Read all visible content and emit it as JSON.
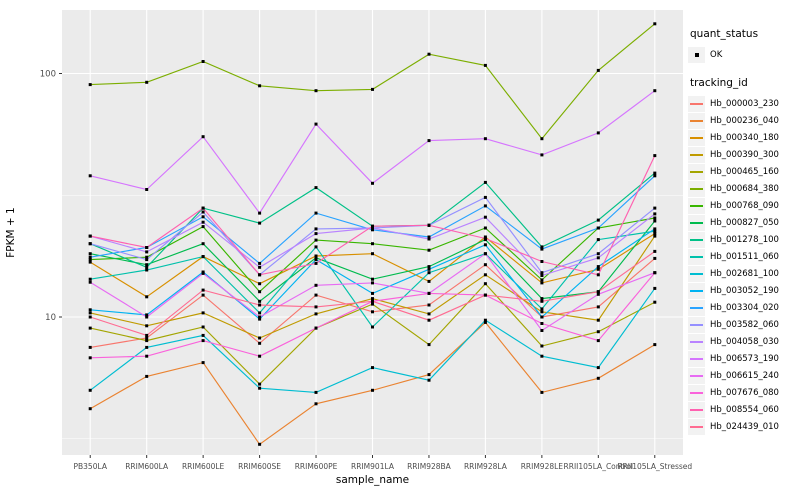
{
  "figure": {
    "background": "#FFFFFF",
    "panel_background": "#EBEBEB",
    "grid_color": "#FFFFFF",
    "axis_text_color": "#4D4D4D",
    "axis_title_color": "#000000",
    "point_color": "#000000"
  },
  "legend": {
    "quant_status_title": "quant_status",
    "quant_status_items": [
      {
        "label": "OK"
      }
    ],
    "tracking_id_title": "tracking_id"
  },
  "chart_data": {
    "type": "line",
    "title": "",
    "xlabel": "sample_name",
    "ylabel": "FPKM + 1",
    "y_scale": "log10",
    "y_major_ticks": [
      100,
      10
    ],
    "y_minor_ticks": [
      31.62,
      3.162
    ],
    "grid": true,
    "legend_position": "right",
    "point_shape": "filled-black-square",
    "quant_status": "OK",
    "x_categories": [
      "PB350LA",
      "RRIM600LA",
      "RRIM600LE",
      "RRIM600SE",
      "RRIM600PE",
      "RRIM901LA",
      "RRIM928BA",
      "RRIM928LA",
      "RRIM928LE",
      "RRII105LA_Control",
      "RRII105LA_Stressed"
    ],
    "series": [
      {
        "name": "Hb_000003_230",
        "color": "#F8766D",
        "values": [
          7.5,
          8.2,
          12.3,
          7.8,
          12.3,
          10.5,
          11.2,
          16.4,
          10.0,
          11.0,
          17.4
        ]
      },
      {
        "name": "Hb_000236_040",
        "color": "#EA8331",
        "values": [
          4.2,
          5.7,
          6.5,
          3.0,
          4.4,
          5.0,
          5.8,
          9.5,
          4.9,
          5.6,
          7.7
        ]
      },
      {
        "name": "Hb_000340_180",
        "color": "#D89000",
        "values": [
          16.8,
          12.1,
          17.7,
          13.7,
          17.8,
          18.2,
          14.0,
          21.3,
          13.8,
          15.7,
          22.0
        ]
      },
      {
        "name": "Hb_000390_300",
        "color": "#C09B00",
        "values": [
          10.4,
          9.2,
          10.4,
          8.2,
          10.3,
          11.9,
          10.3,
          14.9,
          10.5,
          9.7,
          21.5
        ]
      },
      {
        "name": "Hb_000465_160",
        "color": "#A3A500",
        "values": [
          9.0,
          8.0,
          9.1,
          5.3,
          9.0,
          11.3,
          7.7,
          13.7,
          7.6,
          8.7,
          11.5
        ]
      },
      {
        "name": "Hb_000684_380",
        "color": "#7CAE00",
        "values": [
          90,
          92,
          112,
          89,
          85,
          86,
          120,
          108,
          54,
          103,
          160
        ]
      },
      {
        "name": "Hb_000768_090",
        "color": "#39B600",
        "values": [
          17.2,
          17.6,
          23.5,
          12.7,
          20.7,
          20.0,
          18.8,
          23.2,
          14.2,
          23.2,
          25.5
        ]
      },
      {
        "name": "Hb_000827_050",
        "color": "#00BB4E",
        "values": [
          18.2,
          16.4,
          20.0,
          11.6,
          17.5,
          14.3,
          16.1,
          20.8,
          11.9,
          12.7,
          24.8
        ]
      },
      {
        "name": "Hb_001278_100",
        "color": "#00C087",
        "values": [
          20.0,
          16.0,
          28.0,
          24.3,
          34.0,
          23.6,
          23.8,
          35.7,
          19.4,
          25.0,
          39.0
        ]
      },
      {
        "name": "Hb_001511_060",
        "color": "#00C1AB",
        "values": [
          14.3,
          15.6,
          17.7,
          10.4,
          19.4,
          9.1,
          15.2,
          18.2,
          10.8,
          20.8,
          22.5
        ]
      },
      {
        "name": "Hb_002681_100",
        "color": "#00BDD1",
        "values": [
          5.0,
          7.5,
          8.4,
          5.1,
          4.9,
          6.2,
          5.5,
          9.7,
          6.9,
          6.2,
          13.1
        ]
      },
      {
        "name": "Hb_003052_190",
        "color": "#00B3F2",
        "values": [
          10.7,
          10.2,
          15.3,
          9.8,
          17.2,
          12.5,
          15.7,
          19.8,
          10.0,
          16.1,
          23.0
        ]
      },
      {
        "name": "Hb_003304_020",
        "color": "#29A3FF",
        "values": [
          17.6,
          19.3,
          25.8,
          16.6,
          26.7,
          22.8,
          21.3,
          28.6,
          19.0,
          23.2,
          38.0
        ]
      },
      {
        "name": "Hb_003582_060",
        "color": "#9590FF",
        "values": [
          20.0,
          17.2,
          27.0,
          14.9,
          23.0,
          23.2,
          23.8,
          31.0,
          15.2,
          18.2,
          28.0
        ]
      },
      {
        "name": "Hb_004058_030",
        "color": "#B983FF",
        "values": [
          21.5,
          18.5,
          24.5,
          16.0,
          22.0,
          23.2,
          20.9,
          25.7,
          14.8,
          17.5,
          26.5
        ]
      },
      {
        "name": "Hb_006573_190",
        "color": "#D575FE",
        "values": [
          38,
          33.4,
          55,
          26.7,
          62,
          35.4,
          53,
          54,
          46.3,
          57,
          85
        ]
      },
      {
        "name": "Hb_006615_240",
        "color": "#E76BF3",
        "values": [
          13.9,
          10.0,
          15.1,
          10.0,
          13.5,
          13.8,
          12.5,
          18.2,
          8.8,
          12.4,
          15.2
        ]
      },
      {
        "name": "Hb_007676_080",
        "color": "#FA62DB",
        "values": [
          6.8,
          6.9,
          8.0,
          6.9,
          9.0,
          11.6,
          12.5,
          12.3,
          9.4,
          8.0,
          15.2
        ]
      },
      {
        "name": "Hb_008554_060",
        "color": "#FF61B0",
        "values": [
          21.5,
          19.3,
          28.0,
          14.9,
          16.6,
          23.6,
          23.8,
          21.0,
          16.9,
          14.9,
          46.0
        ]
      },
      {
        "name": "Hb_024439_010",
        "color": "#FF6C92",
        "values": [
          10.0,
          8.4,
          12.9,
          11.2,
          11.0,
          11.6,
          9.7,
          12.3,
          11.6,
          12.7,
          18.6
        ]
      }
    ]
  }
}
